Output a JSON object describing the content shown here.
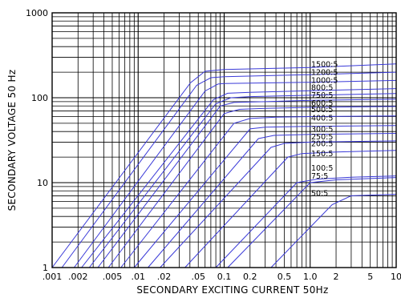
{
  "chart_data": {
    "type": "line",
    "xlabel": "SECONDARY EXCITING CURRENT 50Hz",
    "ylabel": "SECONDARY VOLTAGE 50 Hz",
    "x_scale": "log",
    "y_scale": "log",
    "xlim": [
      0.001,
      10
    ],
    "ylim": [
      1,
      1000
    ],
    "grid": true,
    "x_ticks": [
      {
        "value": 0.001,
        "label": ".001"
      },
      {
        "value": 0.002,
        "label": ".002"
      },
      {
        "value": 0.005,
        "label": ".005"
      },
      {
        "value": 0.01,
        "label": ".01"
      },
      {
        "value": 0.02,
        "label": ".02"
      },
      {
        "value": 0.05,
        "label": ".05"
      },
      {
        "value": 0.1,
        "label": "0.1"
      },
      {
        "value": 0.2,
        "label": "0.2"
      },
      {
        "value": 0.5,
        "label": "0.5"
      },
      {
        "value": 1,
        "label": "1.0"
      },
      {
        "value": 2,
        "label": "2"
      },
      {
        "value": 5,
        "label": "5"
      },
      {
        "value": 10,
        "label": "10"
      }
    ],
    "y_ticks": [
      {
        "value": 1,
        "label": "1"
      },
      {
        "value": 10,
        "label": "10"
      },
      {
        "value": 100,
        "label": "100"
      },
      {
        "value": 1000,
        "label": "1000"
      }
    ],
    "series": [
      {
        "name": "1500:5",
        "label_y": 250,
        "points": [
          [
            0.001,
            1
          ],
          [
            0.0406,
            150
          ],
          [
            0.06,
            205
          ],
          [
            0.1,
            215
          ],
          [
            1,
            227
          ],
          [
            10,
            250
          ]
        ]
      },
      {
        "name": "1200:5",
        "label_y": 200,
        "points": [
          [
            0.0013,
            1
          ],
          [
            0.0479,
            140
          ],
          [
            0.07,
            172
          ],
          [
            0.1,
            177
          ],
          [
            1,
            187
          ],
          [
            10,
            200
          ]
        ]
      },
      {
        "name": "1000:5",
        "label_y": 162,
        "points": [
          [
            0.0018,
            1
          ],
          [
            0.06,
            120
          ],
          [
            0.085,
            145
          ],
          [
            0.1,
            147
          ],
          [
            1,
            152
          ],
          [
            10,
            160
          ]
        ]
      },
      {
        "name": "800:5",
        "label_y": 132,
        "points": [
          [
            0.0022,
            1
          ],
          [
            0.075,
            95
          ],
          [
            0.11,
            113
          ],
          [
            0.2,
            116
          ],
          [
            1,
            121
          ],
          [
            10,
            128
          ]
        ]
      },
      {
        "name": "750:5",
        "label_y": 108,
        "points": [
          [
            0.0027,
            1
          ],
          [
            0.08,
            85
          ],
          [
            0.12,
            100
          ],
          [
            0.2,
            103
          ],
          [
            1,
            107
          ],
          [
            10,
            112
          ]
        ]
      },
      {
        "name": "600:5",
        "label_y": 87,
        "points": [
          [
            0.0034,
            1
          ],
          [
            0.09,
            80
          ],
          [
            0.13,
            88
          ],
          [
            0.3,
            90
          ],
          [
            1,
            93
          ],
          [
            10,
            96
          ]
        ]
      },
      {
        "name": "500:5",
        "label_y": 73,
        "points": [
          [
            0.0045,
            1
          ],
          [
            0.1,
            65
          ],
          [
            0.15,
            73
          ],
          [
            0.3,
            75
          ],
          [
            1,
            77
          ],
          [
            10,
            79
          ]
        ]
      },
      {
        "name": "400:5",
        "label_y": 58,
        "points": [
          [
            0.0063,
            1
          ],
          [
            0.13,
            50
          ],
          [
            0.2,
            57
          ],
          [
            0.4,
            59
          ],
          [
            1,
            60
          ],
          [
            10,
            61
          ]
        ]
      },
      {
        "name": "300:5",
        "label_y": 43,
        "points": [
          [
            0.009,
            1
          ],
          [
            0.2,
            43
          ],
          [
            0.3,
            45
          ],
          [
            1,
            46
          ],
          [
            10,
            47
          ]
        ]
      },
      {
        "name": "250:5",
        "label_y": 35,
        "points": [
          [
            0.013,
            1
          ],
          [
            0.25,
            33
          ],
          [
            0.38,
            36
          ],
          [
            1,
            37
          ],
          [
            10,
            38
          ]
        ]
      },
      {
        "name": "200:5",
        "label_y": 29,
        "points": [
          [
            0.018,
            1
          ],
          [
            0.35,
            26
          ],
          [
            0.5,
            29
          ],
          [
            1,
            30
          ],
          [
            10,
            31
          ]
        ]
      },
      {
        "name": "150:5",
        "label_y": 22,
        "points": [
          [
            0.035,
            1
          ],
          [
            0.55,
            20
          ],
          [
            0.8,
            22
          ],
          [
            2,
            23
          ],
          [
            10,
            24
          ]
        ]
      },
      {
        "name": "100:5",
        "label_y": 15,
        "points": [
          [
            0.08,
            1
          ],
          [
            0.7,
            10
          ],
          [
            1.2,
            11
          ],
          [
            3,
            11.6
          ],
          [
            10,
            12
          ]
        ]
      },
      {
        "name": "75:5",
        "label_y": 12,
        "points": [
          [
            0.11,
            1
          ],
          [
            1.0,
            10
          ],
          [
            2.0,
            10.8
          ],
          [
            10,
            11.5
          ]
        ]
      },
      {
        "name": "50:5",
        "label_y": 7.5,
        "points": [
          [
            0.35,
            1
          ],
          [
            1.8,
            5.5
          ],
          [
            3,
            7
          ],
          [
            10,
            7.3
          ]
        ]
      }
    ]
  },
  "colors": {
    "curve": "#3a3ad8",
    "grid": "#000000",
    "text": "#000000",
    "background": "#ffffff"
  }
}
